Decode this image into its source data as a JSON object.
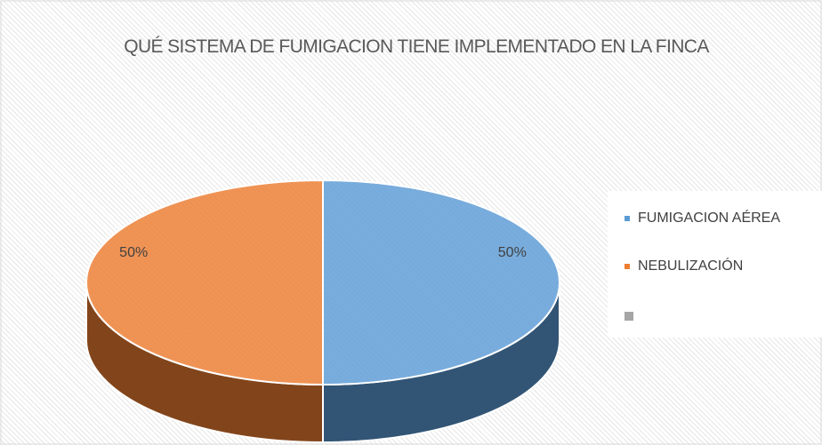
{
  "chart_data": {
    "type": "pie3d",
    "title": "QUÉ SISTEMA DE FUMIGACION TIENE IMPLEMENTADO EN LA FINCA",
    "categories": [
      "FUMIGACION AÉREA",
      "NEBULIZACIÓN",
      null
    ],
    "values": [
      50,
      50,
      0
    ],
    "value_labels": [
      "50%",
      "50%",
      null
    ],
    "colors": [
      "#5b9bd5",
      "#ed7d31",
      "#a5a5a5"
    ],
    "legend": "right"
  }
}
